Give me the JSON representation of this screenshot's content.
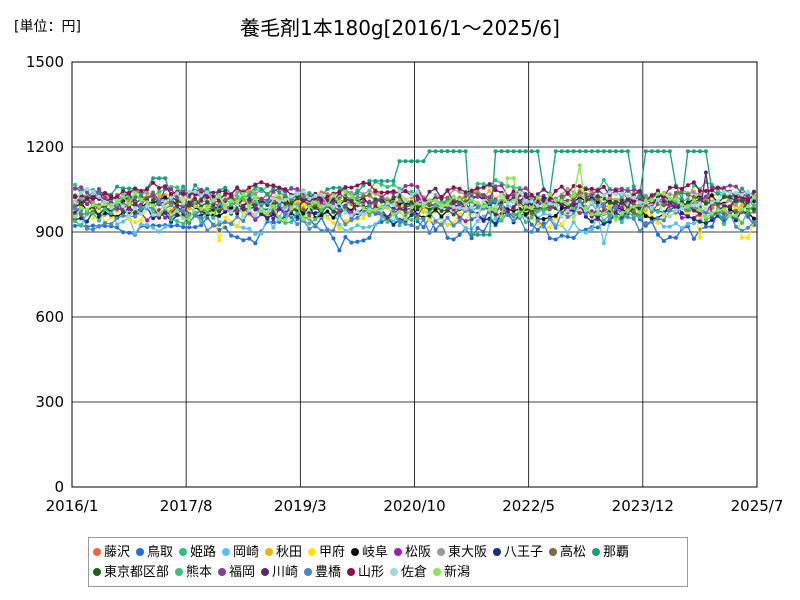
{
  "chart_data": {
    "type": "line",
    "title": "養毛剤1本180g[2016/1～2025/6]",
    "unit_label": "[単位：円]",
    "xlabel": "",
    "ylabel": "",
    "ylim": [
      0,
      1500
    ],
    "yticks": [
      "0",
      "300",
      "600",
      "900",
      "1200",
      "1500"
    ],
    "xlim": [
      0,
      114
    ],
    "xticks": [
      {
        "label": "2016/1",
        "index": 0
      },
      {
        "label": "2017/8",
        "index": 19
      },
      {
        "label": "2019/3",
        "index": 38
      },
      {
        "label": "2020/10",
        "index": 57
      },
      {
        "label": "2022/5",
        "index": 76
      },
      {
        "label": "2023/12",
        "index": 95
      },
      {
        "label": "2025/7",
        "index": 114
      }
    ],
    "n_points": 114,
    "series": [
      {
        "name": "藤沢",
        "color": "#f0643c",
        "base": 1000,
        "amp": 25,
        "phase": 0.0
      },
      {
        "name": "鳥取",
        "color": "#1f6fe0",
        "base": 920,
        "amp": 35,
        "phase": 1.1
      },
      {
        "name": "姫路",
        "color": "#2ec27e",
        "base": 1030,
        "amp": 30,
        "phase": 2.3
      },
      {
        "name": "岡崎",
        "color": "#5bc0f0",
        "base": 950,
        "amp": 35,
        "phase": 0.7
      },
      {
        "name": "秋田",
        "color": "#f0b400",
        "base": 1010,
        "amp": 25,
        "phase": 3.1
      },
      {
        "name": "甲府",
        "color": "#ffe400",
        "base": 970,
        "amp": 35,
        "phase": 1.9
      },
      {
        "name": "岐阜",
        "color": "#111111",
        "base": 990,
        "amp": 25,
        "phase": 2.7
      },
      {
        "name": "松阪",
        "color": "#9b1fb5",
        "base": 985,
        "amp": 30,
        "phase": 0.3
      },
      {
        "name": "東大阪",
        "color": "#9a9a9a",
        "base": 1020,
        "amp": 20,
        "phase": 4.0
      },
      {
        "name": "八王子",
        "color": "#15307a",
        "base": 975,
        "amp": 30,
        "phase": 5.1
      },
      {
        "name": "高松",
        "color": "#7a6a45",
        "base": 1000,
        "amp": 25,
        "phase": 3.7
      },
      {
        "name": "那覇",
        "color": "#14a37a",
        "base": 1050,
        "amp": 15,
        "phase": 0.0
      },
      {
        "name": "東京都区部",
        "color": "#1f5f1f",
        "base": 995,
        "amp": 20,
        "phase": 2.0
      },
      {
        "name": "熊本",
        "color": "#3dbf7f",
        "base": 975,
        "amp": 30,
        "phase": 4.4
      },
      {
        "name": "福岡",
        "color": "#8a3a9a",
        "base": 1020,
        "amp": 30,
        "phase": 1.4
      },
      {
        "name": "川崎",
        "color": "#5a2a6a",
        "base": 1000,
        "amp": 30,
        "phase": 5.6
      },
      {
        "name": "豊橋",
        "color": "#4a86c8",
        "base": 955,
        "amp": 35,
        "phase": 2.9
      },
      {
        "name": "山形",
        "color": "#8a1050",
        "base": 1040,
        "amp": 20,
        "phase": 3.3
      },
      {
        "name": "佐倉",
        "color": "#a0d8e0",
        "base": 1000,
        "amp": 30,
        "phase": 0.9
      },
      {
        "name": "新潟",
        "color": "#88e850",
        "base": 990,
        "amp": 30,
        "phase": 4.8
      }
    ],
    "naha_plateaus": [
      {
        "from": 49,
        "to": 54,
        "value": 1080
      },
      {
        "from": 54,
        "to": 59,
        "value": 1150
      },
      {
        "from": 59,
        "to": 72,
        "value": 1185
      },
      {
        "from": 72,
        "to": 78,
        "value": 1185
      },
      {
        "from": 80,
        "to": 93,
        "value": 1185
      },
      {
        "from": 95,
        "to": 100,
        "value": 1185
      },
      {
        "from": 102,
        "to": 106,
        "value": 1185
      },
      {
        "from": 13,
        "to": 16,
        "value": 1090
      }
    ],
    "legend": {
      "row1": [
        "藤沢",
        "鳥取",
        "姫路",
        "岡崎",
        "秋田",
        "甲府",
        "岐阜",
        "松阪",
        "東大阪",
        "八王子",
        "高松",
        "那覇"
      ],
      "row2": [
        "東京都区部",
        "熊本",
        "福岡",
        "川崎",
        "豊橋",
        "山形",
        "佐倉",
        "新潟"
      ]
    },
    "grid": true
  }
}
